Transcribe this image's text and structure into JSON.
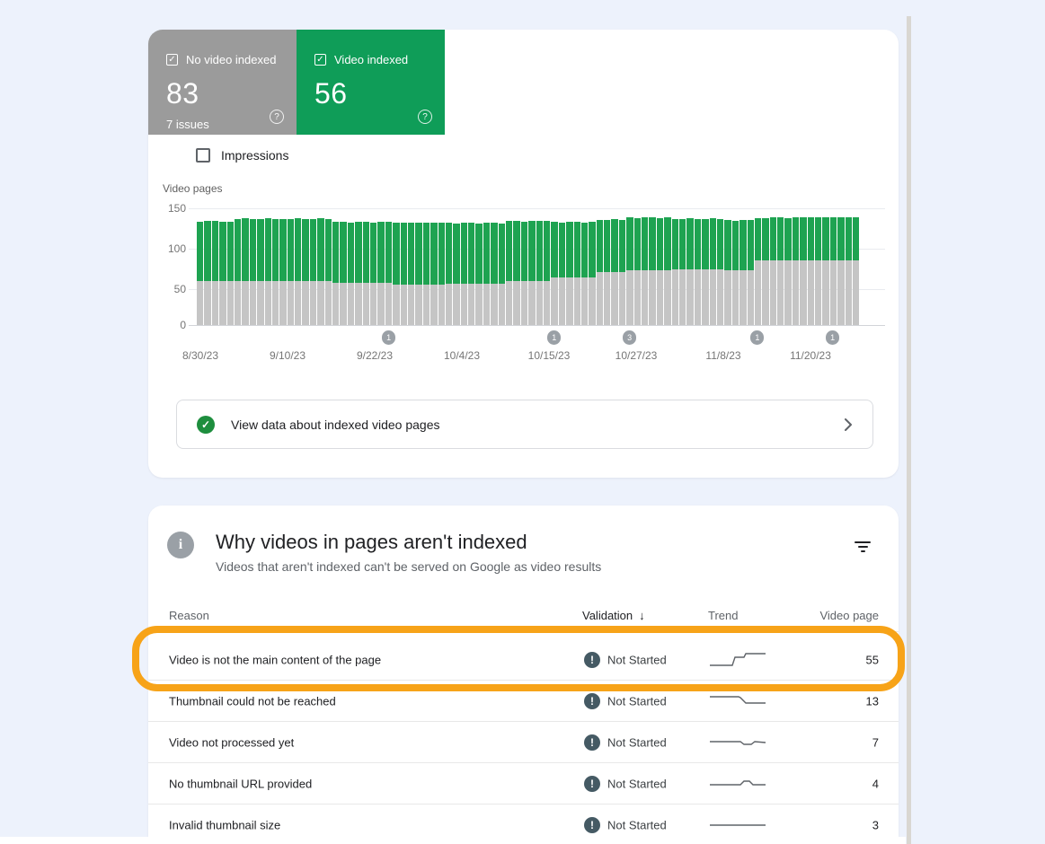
{
  "summary_tiles": {
    "not_indexed": {
      "label": "No video indexed",
      "value": "83",
      "sub": "7 issues",
      "checked": true
    },
    "indexed": {
      "label": "Video indexed",
      "value": "56",
      "checked": true
    }
  },
  "impressions_toggle": {
    "label": "Impressions",
    "checked": false
  },
  "chart_data": {
    "type": "bar",
    "stacked": true,
    "ylabel": "Video pages",
    "ylim": [
      0,
      150
    ],
    "yticks": [
      150,
      100,
      50,
      0
    ],
    "grid": true,
    "legend_position": "none",
    "x_labels": [
      "8/30/23",
      "9/10/23",
      "9/22/23",
      "10/4/23",
      "10/15/23",
      "10/27/23",
      "11/8/23",
      "11/20/23"
    ],
    "series": [
      {
        "name": "No video indexed",
        "color": "#c5c5c5",
        "values": [
          57,
          57,
          57,
          57,
          57,
          57,
          57,
          57,
          57,
          57,
          57,
          57,
          57,
          57,
          57,
          57,
          57,
          57,
          54,
          54,
          54,
          54,
          54,
          54,
          54,
          54,
          52,
          52,
          52,
          52,
          52,
          52,
          52,
          53,
          53,
          53,
          53,
          53,
          53,
          53,
          53,
          57,
          57,
          57,
          57,
          57,
          57,
          61,
          61,
          61,
          61,
          61,
          61,
          68,
          68,
          68,
          68,
          71,
          71,
          71,
          71,
          71,
          71,
          72,
          72,
          72,
          72,
          72,
          72,
          72,
          70,
          70,
          70,
          70,
          83,
          83,
          83,
          83,
          83,
          83,
          83,
          83,
          83,
          83,
          83,
          83,
          83,
          83
        ]
      },
      {
        "name": "Video indexed",
        "color": "#1ea351",
        "values": [
          76,
          77,
          77,
          76,
          76,
          79,
          80,
          79,
          79,
          80,
          79,
          79,
          79,
          80,
          79,
          79,
          80,
          79,
          79,
          79,
          78,
          79,
          79,
          78,
          79,
          79,
          79,
          80,
          79,
          79,
          79,
          80,
          79,
          79,
          78,
          79,
          79,
          78,
          79,
          79,
          78,
          77,
          77,
          76,
          77,
          77,
          77,
          72,
          71,
          72,
          72,
          71,
          72,
          67,
          67,
          68,
          67,
          67,
          66,
          67,
          67,
          66,
          67,
          64,
          64,
          65,
          64,
          64,
          65,
          64,
          65,
          64,
          65,
          65,
          54,
          54,
          55,
          55,
          54,
          55,
          56,
          56,
          55,
          55,
          56,
          56,
          55,
          56
        ]
      }
    ],
    "annotations": [
      {
        "index": 25,
        "label": "1"
      },
      {
        "index": 47,
        "label": "1"
      },
      {
        "index": 57,
        "label": "3"
      },
      {
        "index": 74,
        "label": "1"
      },
      {
        "index": 84,
        "label": "1"
      }
    ]
  },
  "banner": {
    "text": "View data about indexed video pages",
    "icon": "check-circle"
  },
  "issues_panel": {
    "title": "Why videos in pages aren't indexed",
    "subtitle": "Videos that aren't indexed can't be served on Google as video results",
    "columns": {
      "reason": "Reason",
      "validation": "Validation",
      "sort_arrow": "↓",
      "trend": "Trend",
      "pages": "Video page"
    },
    "rows": [
      {
        "reason": "Video is not the main content of the page",
        "validation": "Not Started",
        "pages": "55",
        "highlighted": true,
        "spark": [
          [
            2,
            18
          ],
          [
            27,
            18
          ],
          [
            30,
            9
          ],
          [
            40,
            9
          ],
          [
            42,
            5
          ],
          [
            64,
            5
          ]
        ]
      },
      {
        "reason": "Thumbnail could not be reached",
        "validation": "Not Started",
        "pages": "13",
        "highlighted": false,
        "spark": [
          [
            2,
            7
          ],
          [
            34,
            7
          ],
          [
            36,
            8
          ],
          [
            42,
            14
          ],
          [
            64,
            14
          ]
        ]
      },
      {
        "reason": "Video not processed yet",
        "validation": "Not Started",
        "pages": "7",
        "highlighted": false,
        "spark": [
          [
            2,
            11
          ],
          [
            36,
            11
          ],
          [
            40,
            14
          ],
          [
            48,
            14
          ],
          [
            52,
            11
          ],
          [
            64,
            12
          ]
        ]
      },
      {
        "reason": "No thumbnail URL provided",
        "validation": "Not Started",
        "pages": "4",
        "highlighted": false,
        "spark": [
          [
            2,
            13
          ],
          [
            36,
            13
          ],
          [
            40,
            9
          ],
          [
            46,
            9
          ],
          [
            50,
            13
          ],
          [
            64,
            13
          ]
        ]
      },
      {
        "reason": "Invalid thumbnail size",
        "validation": "Not Started",
        "pages": "3",
        "highlighted": false,
        "spark": [
          [
            2,
            12
          ],
          [
            64,
            12
          ]
        ]
      }
    ]
  },
  "icons": {
    "tile_checkbox": "✓",
    "help": "?",
    "banner_check": "✓",
    "info": "i",
    "validation_error": "!"
  },
  "colors": {
    "background": "#edf2fc",
    "card": "#ffffff",
    "tile_gray": "#9b9b9b",
    "tile_green": "#0f9d58",
    "bar_green": "#1ea351",
    "bar_gray": "#c5c5c5",
    "highlight_ring": "#f7a318",
    "validation_badge": "#455a64",
    "annotation_marker": "#9aa0a6",
    "banner_check_green": "#1e8e3e"
  }
}
